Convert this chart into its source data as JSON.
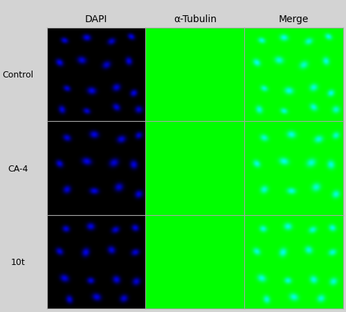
{
  "col_labels": [
    "DAPI",
    "α-Tubulin",
    "Merge"
  ],
  "row_labels": [
    "Control",
    "CA-4",
    "10t"
  ],
  "outer_background": "#d3d3d3",
  "label_color": "#000000",
  "col_label_fontsize": 10,
  "row_label_fontsize": 9,
  "border_color": "#aaaaaa",
  "dapi_color": [
    0.0,
    0.0,
    1.0
  ],
  "tubulin_color": [
    0.0,
    0.75,
    0.0
  ],
  "img_size": 200,
  "control_dapi_nuclei": [
    [
      35,
      28,
      10,
      8,
      0.4,
      0.85
    ],
    [
      80,
      22,
      11,
      9,
      0.2,
      0.9
    ],
    [
      130,
      30,
      9,
      11,
      1.1,
      0.8
    ],
    [
      170,
      20,
      10,
      8,
      0.6,
      0.88
    ],
    [
      25,
      75,
      11,
      9,
      0.8,
      0.92
    ],
    [
      70,
      70,
      12,
      10,
      0.3,
      0.85
    ],
    [
      120,
      80,
      10,
      12,
      0.9,
      0.78
    ],
    [
      165,
      72,
      11,
      9,
      1.3,
      0.87
    ],
    [
      40,
      130,
      10,
      8,
      0.5,
      0.82
    ],
    [
      90,
      135,
      12,
      10,
      0.2,
      0.9
    ],
    [
      140,
      128,
      10,
      11,
      1.0,
      0.84
    ],
    [
      175,
      140,
      9,
      10,
      0.7,
      0.88
    ],
    [
      30,
      175,
      11,
      9,
      1.2,
      0.86
    ],
    [
      80,
      178,
      10,
      8,
      0.4,
      0.82
    ],
    [
      140,
      170,
      11,
      9,
      0.8,
      0.85
    ],
    [
      185,
      175,
      10,
      10,
      0.5,
      0.8
    ]
  ],
  "ca4_nuclei": [
    [
      40,
      35,
      11,
      9,
      0.5,
      0.82
    ],
    [
      95,
      28,
      12,
      10,
      0.2,
      0.88
    ],
    [
      150,
      38,
      10,
      12,
      1.2,
      0.85
    ],
    [
      185,
      30,
      9,
      10,
      0.7,
      0.8
    ],
    [
      25,
      90,
      11,
      9,
      0.9,
      0.87
    ],
    [
      80,
      85,
      13,
      10,
      0.3,
      0.9
    ],
    [
      135,
      88,
      11,
      13,
      1.0,
      0.83
    ],
    [
      175,
      92,
      12,
      10,
      1.4,
      0.86
    ],
    [
      40,
      145,
      10,
      11,
      0.6,
      0.84
    ],
    [
      95,
      148,
      12,
      9,
      0.1,
      0.88
    ],
    [
      145,
      140,
      11,
      12,
      0.8,
      0.82
    ],
    [
      185,
      155,
      10,
      11,
      0.5,
      0.85
    ]
  ],
  "t10_nuclei": [
    [
      38,
      30,
      10,
      9,
      0.4,
      0.85
    ],
    [
      88,
      25,
      11,
      10,
      0.2,
      0.88
    ],
    [
      138,
      32,
      9,
      11,
      1.1,
      0.82
    ],
    [
      178,
      28,
      10,
      9,
      0.6,
      0.87
    ],
    [
      25,
      78,
      11,
      9,
      0.8,
      0.84
    ],
    [
      78,
      80,
      10,
      12,
      0.3,
      0.9
    ],
    [
      130,
      75,
      11,
      10,
      0.9,
      0.85
    ],
    [
      178,
      80,
      9,
      11,
      1.2,
      0.83
    ],
    [
      35,
      135,
      12,
      10,
      0.5,
      0.87
    ],
    [
      88,
      140,
      10,
      9,
      0.2,
      0.84
    ],
    [
      140,
      138,
      11,
      10,
      1.0,
      0.88
    ],
    [
      180,
      142,
      10,
      11,
      0.7,
      0.82
    ],
    [
      45,
      180,
      11,
      9,
      1.3,
      0.85
    ],
    [
      100,
      175,
      12,
      10,
      0.4,
      0.87
    ],
    [
      155,
      178,
      10,
      11,
      0.8,
      0.83
    ]
  ],
  "control_cells": [
    [
      30,
      25,
      28,
      22,
      0.3,
      0.85,
      0.18
    ],
    [
      85,
      30,
      26,
      30,
      0.8,
      0.9,
      0.15
    ],
    [
      145,
      22,
      32,
      25,
      0.2,
      0.88,
      0.16
    ],
    [
      185,
      35,
      25,
      28,
      1.1,
      0.82,
      0.17
    ],
    [
      22,
      80,
      28,
      32,
      0.5,
      0.87,
      0.16
    ],
    [
      80,
      82,
      35,
      28,
      0.9,
      0.92,
      0.14
    ],
    [
      148,
      78,
      30,
      35,
      1.3,
      0.85,
      0.15
    ],
    [
      188,
      85,
      26,
      30,
      0.6,
      0.88,
      0.17
    ],
    [
      30,
      148,
      30,
      25,
      0.4,
      0.86,
      0.16
    ],
    [
      90,
      145,
      32,
      28,
      1.0,
      0.9,
      0.15
    ],
    [
      150,
      150,
      28,
      32,
      0.7,
      0.84,
      0.16
    ],
    [
      188,
      148,
      25,
      28,
      1.4,
      0.87,
      0.17
    ],
    [
      40,
      188,
      30,
      26,
      0.2,
      0.85,
      0.15
    ],
    [
      100,
      185,
      28,
      30,
      0.8,
      0.88,
      0.16
    ],
    [
      158,
      185,
      32,
      26,
      1.1,
      0.82,
      0.17
    ]
  ],
  "ca4_cells": [
    [
      35,
      28,
      30,
      24,
      0.4,
      0.82,
      0.16
    ],
    [
      95,
      25,
      28,
      32,
      0.9,
      0.88,
      0.15
    ],
    [
      155,
      30,
      32,
      26,
      0.3,
      0.85,
      0.16
    ],
    [
      188,
      38,
      26,
      30,
      1.2,
      0.8,
      0.17
    ],
    [
      25,
      88,
      32,
      28,
      0.6,
      0.87,
      0.15
    ],
    [
      88,
      85,
      36,
      30,
      1.0,
      0.9,
      0.14
    ],
    [
      152,
      80,
      28,
      36,
      1.4,
      0.85,
      0.16
    ],
    [
      188,
      90,
      26,
      32,
      0.5,
      0.88,
      0.17
    ],
    [
      35,
      152,
      30,
      26,
      0.3,
      0.84,
      0.16
    ],
    [
      95,
      148,
      32,
      30,
      1.1,
      0.88,
      0.15
    ],
    [
      155,
      148,
      28,
      34,
      0.8,
      0.82,
      0.16
    ],
    [
      188,
      155,
      26,
      28,
      1.5,
      0.85,
      0.17
    ]
  ],
  "t10_cells": [
    [
      40,
      35,
      22,
      22,
      0.2,
      0.88,
      0.22
    ],
    [
      90,
      30,
      24,
      22,
      0.7,
      0.9,
      0.22
    ],
    [
      145,
      35,
      22,
      24,
      1.1,
      0.85,
      0.22
    ],
    [
      185,
      40,
      20,
      22,
      0.5,
      0.87,
      0.22
    ],
    [
      25,
      88,
      22,
      24,
      0.8,
      0.85,
      0.22
    ],
    [
      80,
      90,
      24,
      22,
      0.3,
      0.9,
      0.22
    ],
    [
      135,
      85,
      22,
      26,
      1.3,
      0.88,
      0.22
    ],
    [
      182,
      90,
      20,
      24,
      0.6,
      0.85,
      0.22
    ],
    [
      40,
      142,
      22,
      22,
      0.4,
      0.87,
      0.22
    ],
    [
      90,
      145,
      24,
      20,
      1.0,
      0.9,
      0.22
    ],
    [
      142,
      140,
      22,
      24,
      0.7,
      0.85,
      0.22
    ],
    [
      182,
      148,
      20,
      22,
      1.4,
      0.87,
      0.22
    ],
    [
      50,
      182,
      22,
      20,
      0.2,
      0.88,
      0.22
    ],
    [
      100,
      178,
      24,
      22,
      0.9,
      0.85,
      0.22
    ],
    [
      152,
      182,
      22,
      22,
      1.2,
      0.87,
      0.22
    ],
    [
      188,
      180,
      20,
      20,
      0.5,
      0.85,
      0.22
    ]
  ]
}
